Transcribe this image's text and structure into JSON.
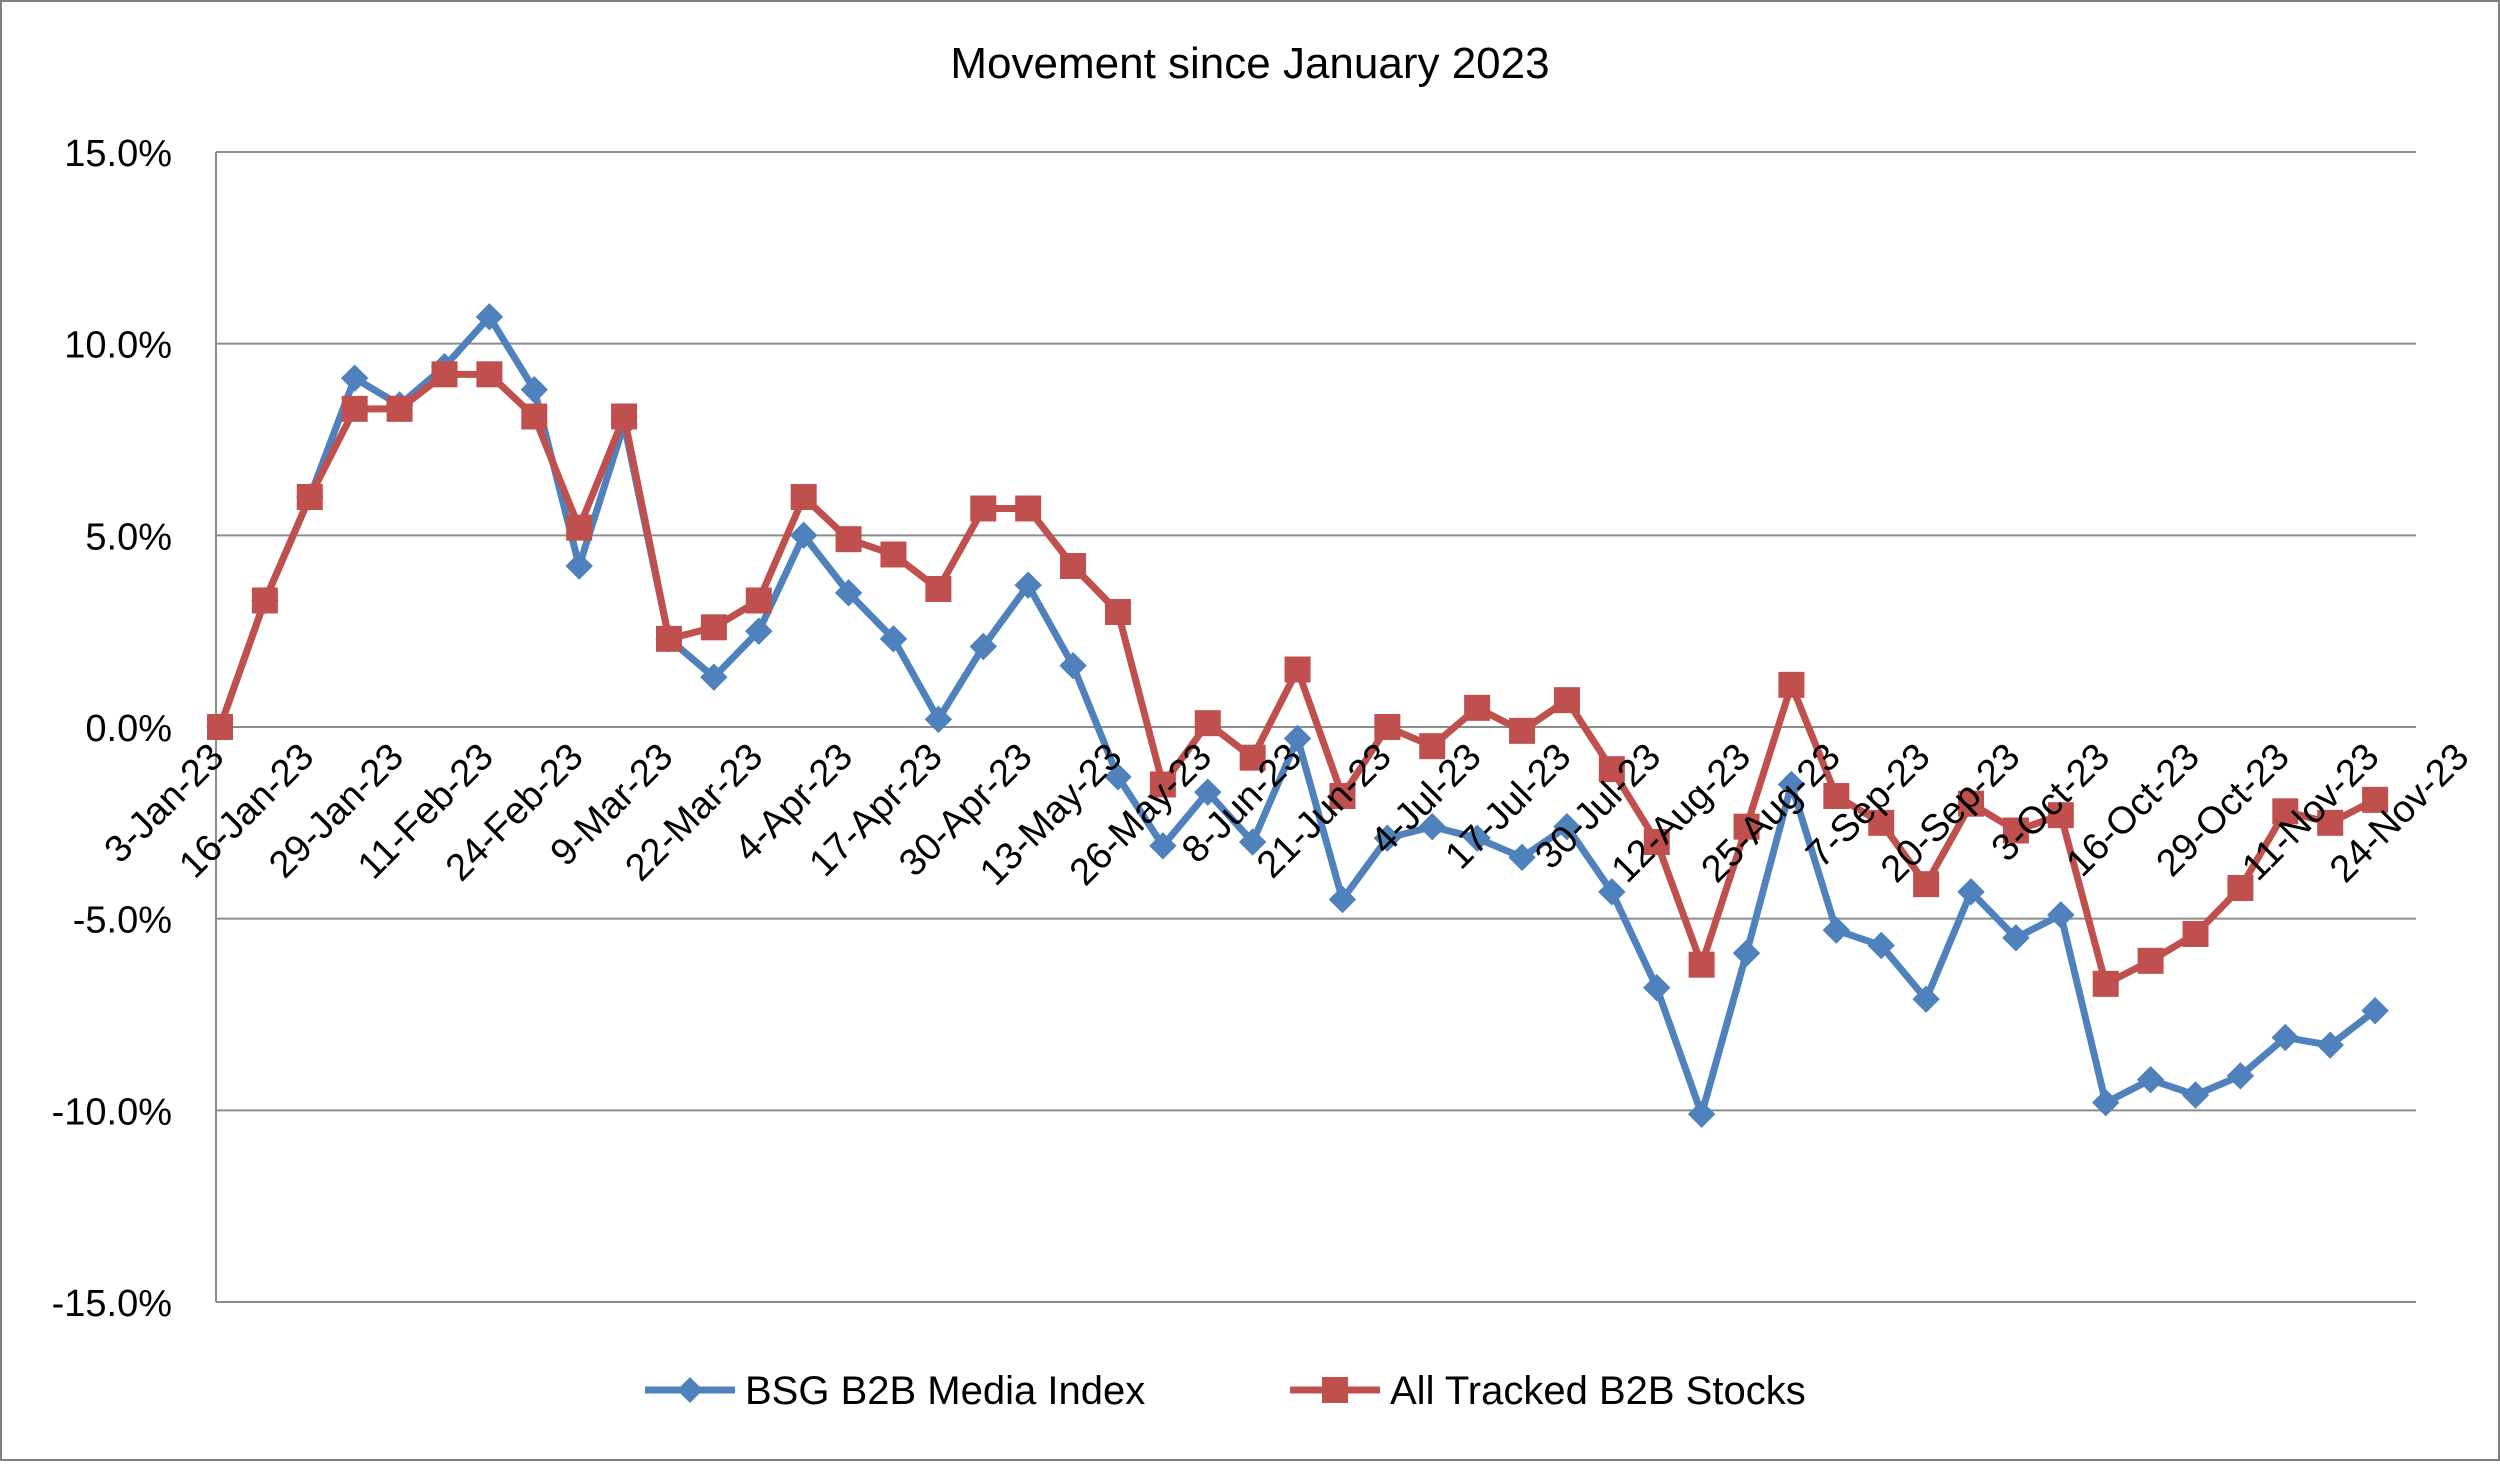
{
  "chart_data": {
    "type": "line",
    "title": "Movement since January 2023",
    "xlabel": "",
    "ylabel": "",
    "ylim": [
      -15,
      15
    ],
    "y_ticks": [
      "15.0%",
      "10.0%",
      "5.0%",
      "0.0%",
      "-5.0%",
      "-10.0%",
      "-15.0%"
    ],
    "y_tick_values": [
      15,
      10,
      5,
      0,
      -5,
      -10,
      -15
    ],
    "x_tick_labels": [
      "3-Jan-23",
      "16-Jan-23",
      "29-Jan-23",
      "11-Feb-23",
      "24-Feb-23",
      "9-Mar-23",
      "22-Mar-23",
      "4-Apr-23",
      "17-Apr-23",
      "30-Apr-23",
      "13-May-23",
      "26-May-23",
      "8-Jun-23",
      "21-Jun-23",
      "4-Jul-23",
      "17-Jul-23",
      "30-Jul-23",
      "12-Aug-23",
      "25-Aug-23",
      "7-Sep-23",
      "20-Sep-23",
      "3-Oct-23",
      "16-Oct-23",
      "29-Oct-23",
      "11-Nov-23",
      "24-Nov-23"
    ],
    "grid": true,
    "legend_position": "bottom",
    "series": [
      {
        "name": "BSG B2B Media Index",
        "color": "#4F81BD",
        "marker": "diamond",
        "values": [
          0,
          3.3,
          6.0,
          9.1,
          8.4,
          9.4,
          10.7,
          8.8,
          4.2,
          7.9,
          2.3,
          1.3,
          2.5,
          5.0,
          3.5,
          2.3,
          0.2,
          2.1,
          3.7,
          1.6,
          -1.3,
          -3.1,
          -1.7,
          -3.0,
          -0.3,
          -4.5,
          -2.9,
          -2.6,
          -2.9,
          -3.4,
          -2.6,
          -4.3,
          -6.8,
          -10.1,
          -5.9,
          -1.5,
          -5.3,
          -5.7,
          -7.1,
          -4.3,
          -5.5,
          -4.9,
          -9.8,
          -9.2,
          -9.6,
          -9.1,
          -8.1,
          -8.3,
          -7.4
        ],
        "end_value": -7.4
      },
      {
        "name": "All Tracked B2B Stocks",
        "color": "#C0504D",
        "marker": "square",
        "values": [
          0,
          3.3,
          6.0,
          8.3,
          8.3,
          9.2,
          9.2,
          8.1,
          5.2,
          8.1,
          2.3,
          2.6,
          3.3,
          6.0,
          4.9,
          4.5,
          3.6,
          5.7,
          5.7,
          4.2,
          3.0,
          -1.5,
          0.1,
          -0.8,
          1.5,
          -1.8,
          0.0,
          -0.5,
          0.5,
          -0.1,
          0.7,
          -1.1,
          -3.0,
          -6.2,
          -2.6,
          1.1,
          -1.8,
          -2.5,
          -4.1,
          -2.0,
          -2.7,
          -2.3,
          -6.7,
          -6.1,
          -5.4,
          -4.2,
          -2.2,
          -2.5,
          -1.9
        ],
        "end_value": -1.9
      }
    ]
  }
}
